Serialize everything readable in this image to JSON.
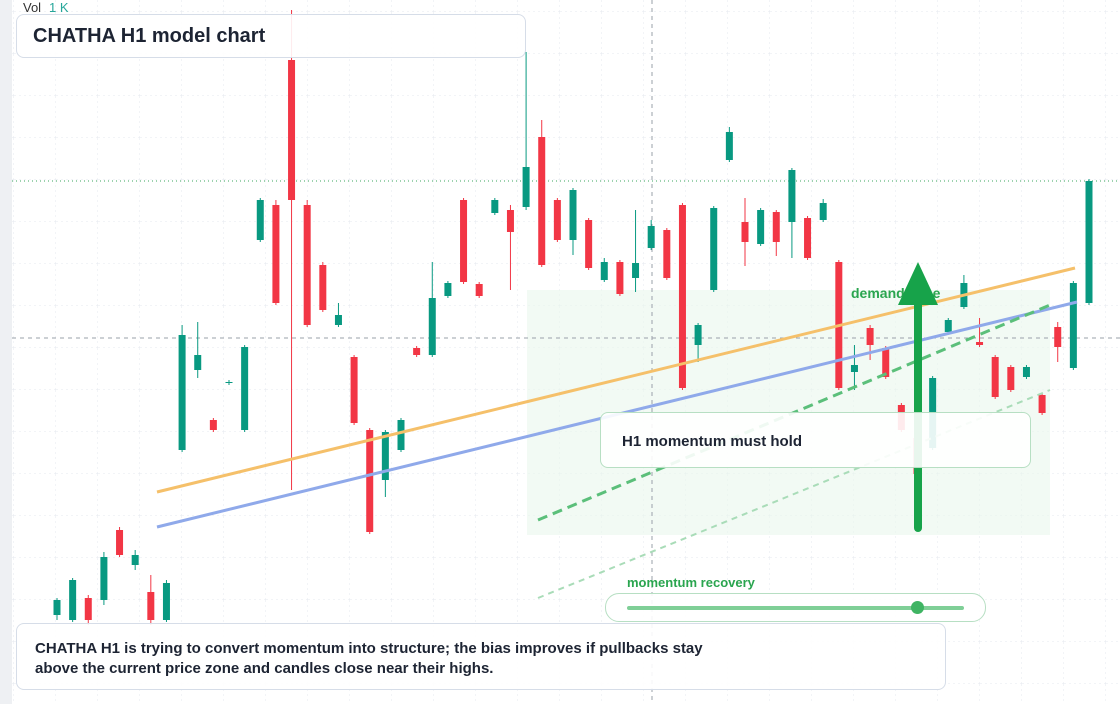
{
  "chart_data": {
    "type": "candlestick",
    "title": "CHATHA H1 model chart",
    "volume_title": "Vol",
    "volume_value": "1 K",
    "up_color": "#089981",
    "down_color": "#f23645",
    "ylim": [
      9.6,
      80
    ],
    "open": [
      18.5,
      18,
      20.2,
      20,
      27,
      23.5,
      20.8,
      18,
      35,
      43,
      38,
      41.7,
      37,
      56,
      59.5,
      74,
      59.5,
      53.5,
      47.5,
      44.3,
      37,
      32,
      35,
      45.2,
      44.5,
      50.4,
      60,
      51.6,
      58.7,
      59,
      59.3,
      66.3,
      60,
      56,
      58,
      52,
      53.8,
      52.2,
      55.2,
      57,
      59.5,
      45.5,
      51,
      64,
      57.8,
      55.6,
      58.8,
      57.8,
      58.2,
      58,
      53.8,
      42.8,
      47.2,
      45.2,
      39.5,
      36.2,
      35.2,
      46.8,
      49.3,
      45.8,
      44.3,
      43.3,
      42.3,
      40.5,
      47.3,
      43.2,
      49.7
    ],
    "high": [
      20.2,
      22.2,
      20.5,
      24.8,
      27.3,
      25,
      22.5,
      22,
      47.5,
      47.8,
      38.2,
      42,
      45.5,
      60.2,
      60,
      79,
      60,
      53.8,
      49.7,
      44.5,
      37.2,
      37,
      38.2,
      45.4,
      53.8,
      51.9,
      60.2,
      51.8,
      60.2,
      59.5,
      74.8,
      68,
      60.2,
      61.2,
      58.2,
      54.2,
      54,
      59,
      58,
      57.2,
      59.7,
      47.7,
      59.4,
      67.3,
      60.2,
      59.2,
      59,
      63.2,
      58.4,
      60.1,
      54,
      45.5,
      47.5,
      45.4,
      39.7,
      39,
      42.4,
      48.2,
      52.5,
      48.2,
      44.5,
      43.5,
      43.5,
      40.7,
      47.8,
      51.9,
      62.1
    ],
    "low": [
      18,
      17.8,
      17.5,
      19.5,
      24.3,
      23,
      17.5,
      17.8,
      34.8,
      42.2,
      36.8,
      41.5,
      36.8,
      55.8,
      49.5,
      31,
      47.3,
      48.8,
      47.3,
      37.5,
      26.6,
      30.3,
      34.8,
      44.3,
      44.3,
      50.2,
      51.6,
      50.2,
      58.5,
      51,
      59,
      53.3,
      55.8,
      54.5,
      53,
      51.8,
      50.4,
      50.8,
      55,
      52,
      41,
      43.8,
      50.8,
      63.8,
      53.4,
      55.4,
      54.4,
      54.2,
      54,
      57.8,
      41,
      41,
      44,
      42.1,
      36.8,
      32.4,
      35,
      46.6,
      49.1,
      45.3,
      40.1,
      40.8,
      42.1,
      38.5,
      43.8,
      43,
      49.5
    ],
    "close": [
      20,
      22,
      18,
      24.3,
      24.5,
      24.5,
      18,
      21.7,
      46.5,
      44.5,
      37,
      41.8,
      45.3,
      60,
      49.7,
      60,
      47.5,
      49,
      48.5,
      37.7,
      26.8,
      36.8,
      38,
      44.5,
      50.2,
      51.7,
      51.8,
      50.4,
      60,
      56.8,
      63.3,
      53.5,
      56,
      61,
      53.2,
      53.8,
      50.6,
      53.7,
      57.4,
      52.2,
      41.2,
      47.5,
      59.2,
      66.8,
      55.8,
      59,
      55.8,
      63,
      54.2,
      59.7,
      41.2,
      43.5,
      45.5,
      42.3,
      37,
      32.6,
      42.2,
      48,
      51.7,
      45.5,
      40.3,
      41,
      43.3,
      38.7,
      45.3,
      51.7,
      61.9
    ],
    "annotations": {
      "demand_zone": "demand zone",
      "callout": "H1 momentum must hold",
      "slider": "momentum recovery",
      "summary": "CHATHA H1 is trying to convert momentum into structure; the bias improves if pullbacks stay above the current price zone and candles close near their highs."
    }
  }
}
